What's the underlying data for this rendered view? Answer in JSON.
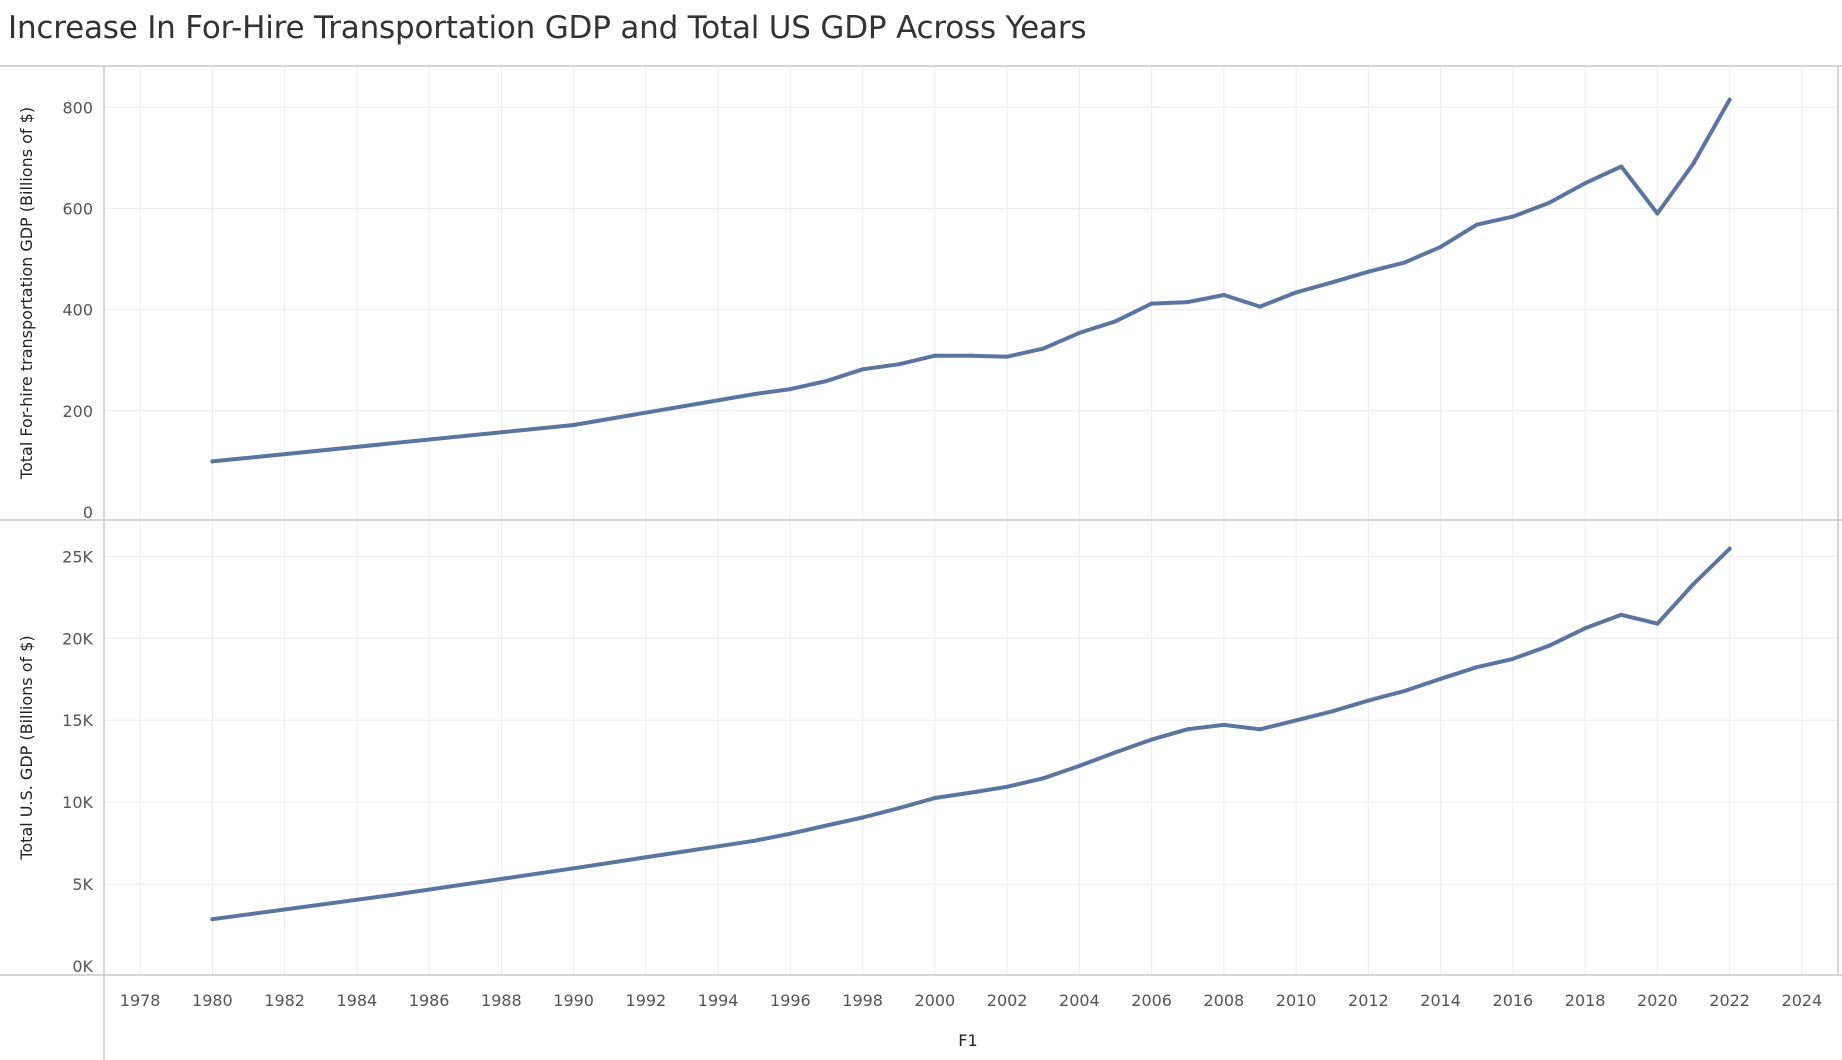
{
  "title": "Increase In For-Hire Transportation GDP and Total US GDP Across Years",
  "colors": {
    "line": "#5a76a0",
    "grid": "#ececec",
    "axis": "#c8c8c8"
  },
  "chart_data": [
    {
      "type": "line",
      "ylabel": "Total For-hire transportation GDP (Billions of $)",
      "xlim": [
        1977,
        2025
      ],
      "ylim": [
        0,
        850
      ],
      "grid": true,
      "x_ticks": [
        1978,
        1980,
        1982,
        1984,
        1986,
        1988,
        1990,
        1992,
        1994,
        1996,
        1998,
        2000,
        2002,
        2004,
        2006,
        2008,
        2010,
        2012,
        2014,
        2016,
        2018,
        2020,
        2022,
        2024
      ],
      "y_ticks": [
        {
          "value": 0,
          "label": "0"
        },
        {
          "value": 200,
          "label": "200"
        },
        {
          "value": 400,
          "label": "400"
        },
        {
          "value": 600,
          "label": "600"
        },
        {
          "value": 800,
          "label": "800"
        }
      ],
      "x": [
        1980,
        1990,
        1995,
        1996,
        1997,
        1998,
        1999,
        2000,
        2001,
        2002,
        2003,
        2004,
        2005,
        2006,
        2007,
        2008,
        2009,
        2010,
        2011,
        2012,
        2013,
        2014,
        2015,
        2016,
        2017,
        2018,
        2019,
        2020,
        2021,
        2022
      ],
      "values": [
        100,
        172,
        233,
        243,
        259,
        282,
        292,
        309,
        309,
        307,
        323,
        354,
        377,
        412,
        415,
        429,
        406,
        434,
        454,
        475,
        493,
        524,
        568,
        584,
        611,
        650,
        683,
        590,
        689,
        815
      ]
    },
    {
      "type": "line",
      "ylabel": "Total U.S. GDP (Billions of $)",
      "xlabel": "F1",
      "xlim": [
        1977,
        2025
      ],
      "ylim": [
        0,
        26000
      ],
      "grid": true,
      "x_ticks": [
        1978,
        1980,
        1982,
        1984,
        1986,
        1988,
        1990,
        1992,
        1994,
        1996,
        1998,
        2000,
        2002,
        2004,
        2006,
        2008,
        2010,
        2012,
        2014,
        2016,
        2018,
        2020,
        2022,
        2024
      ],
      "y_ticks": [
        {
          "value": 0,
          "label": "0K"
        },
        {
          "value": 5000,
          "label": "5K"
        },
        {
          "value": 10000,
          "label": "10K"
        },
        {
          "value": 15000,
          "label": "15K"
        },
        {
          "value": 20000,
          "label": "20K"
        },
        {
          "value": 25000,
          "label": "25K"
        }
      ],
      "x": [
        1980,
        1985,
        1990,
        1995,
        1996,
        1997,
        1998,
        1999,
        2000,
        2001,
        2002,
        2003,
        2004,
        2005,
        2006,
        2007,
        2008,
        2009,
        2010,
        2011,
        2012,
        2013,
        2014,
        2015,
        2016,
        2017,
        2018,
        2019,
        2020,
        2021,
        2022
      ],
      "values": [
        2857,
        4339,
        5963,
        7640,
        8073,
        8577,
        9063,
        9631,
        10252,
        10582,
        10936,
        11458,
        12214,
        13037,
        13816,
        14452,
        14713,
        14449,
        14992,
        15543,
        16197,
        16785,
        17527,
        18238,
        18745,
        19543,
        20612,
        21433,
        20894,
        23315,
        25463
      ]
    }
  ]
}
